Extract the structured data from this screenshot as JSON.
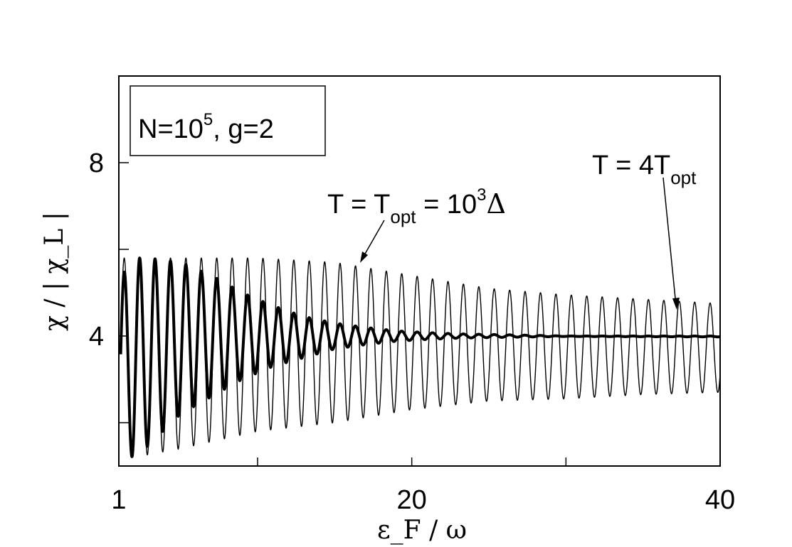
{
  "chart_data": {
    "type": "line",
    "xlabel": "ε_F / ω",
    "ylabel": "χ / | χ_L |",
    "xlim": [
      1,
      40
    ],
    "ylim": [
      1,
      10
    ],
    "x_ticks": [
      {
        "value": 1,
        "label": "1"
      },
      {
        "value": 10,
        "label": ""
      },
      {
        "value": 20,
        "label": "20"
      },
      {
        "value": 30,
        "label": ""
      },
      {
        "value": 40,
        "label": "40"
      }
    ],
    "y_ticks": [
      {
        "value": 2,
        "label": ""
      },
      {
        "value": 4,
        "label": "4"
      },
      {
        "value": 6,
        "label": ""
      },
      {
        "value": 8,
        "label": "8"
      }
    ],
    "legend_box": {
      "text": "N=10^5,   g=2",
      "N_prefix": "N=10",
      "N_exp": "5",
      "g_text": ",   g=2",
      "position": "top-left"
    },
    "annotations": [
      {
        "id": "thin",
        "text": "T = 4T_opt",
        "main": "T = 4T",
        "sub": "opt",
        "points_to_x": 37.2,
        "points_to_y": 4.15
      },
      {
        "id": "thick",
        "text": "T = T_opt = 10^3Δ",
        "part1": "T = T",
        "sub": "opt",
        "part2": " = 10",
        "sup": "3",
        "part3": "Δ",
        "points_to_x": 16.4,
        "points_to_y": 5.3
      }
    ],
    "series": [
      {
        "style": "thin",
        "color": "#000000",
        "line_width": 1.4,
        "mean": 4.0,
        "env_anchors_x": [
          1,
          2,
          5,
          10,
          15,
          20,
          25,
          30,
          35,
          40
        ],
        "env_max": [
          5.8,
          5.8,
          5.8,
          5.8,
          5.7,
          5.4,
          5.1,
          4.95,
          4.85,
          4.75
        ],
        "env_min": [
          1.2,
          1.2,
          1.4,
          1.8,
          2.0,
          2.3,
          2.5,
          2.55,
          2.65,
          2.7
        ],
        "period": 1.0,
        "phase_x0": 1.35
      },
      {
        "style": "thick",
        "color": "#000000",
        "line_width": 4.0,
        "mean": 4.0,
        "env_anchors_x": [
          1,
          2,
          3,
          5,
          7,
          9,
          11,
          13,
          15,
          17,
          19,
          21,
          23,
          26,
          30,
          40
        ],
        "env_max": [
          5.3,
          5.8,
          5.8,
          5.7,
          5.4,
          5.0,
          4.7,
          4.45,
          4.3,
          4.2,
          4.12,
          4.08,
          4.05,
          4.03,
          4.0,
          4.0
        ],
        "env_min": [
          1.3,
          1.2,
          1.5,
          2.2,
          2.6,
          3.0,
          3.3,
          3.5,
          3.7,
          3.8,
          3.88,
          3.92,
          3.95,
          3.97,
          3.99,
          3.98
        ],
        "period": 1.0,
        "phase_x0": 1.35
      }
    ]
  }
}
